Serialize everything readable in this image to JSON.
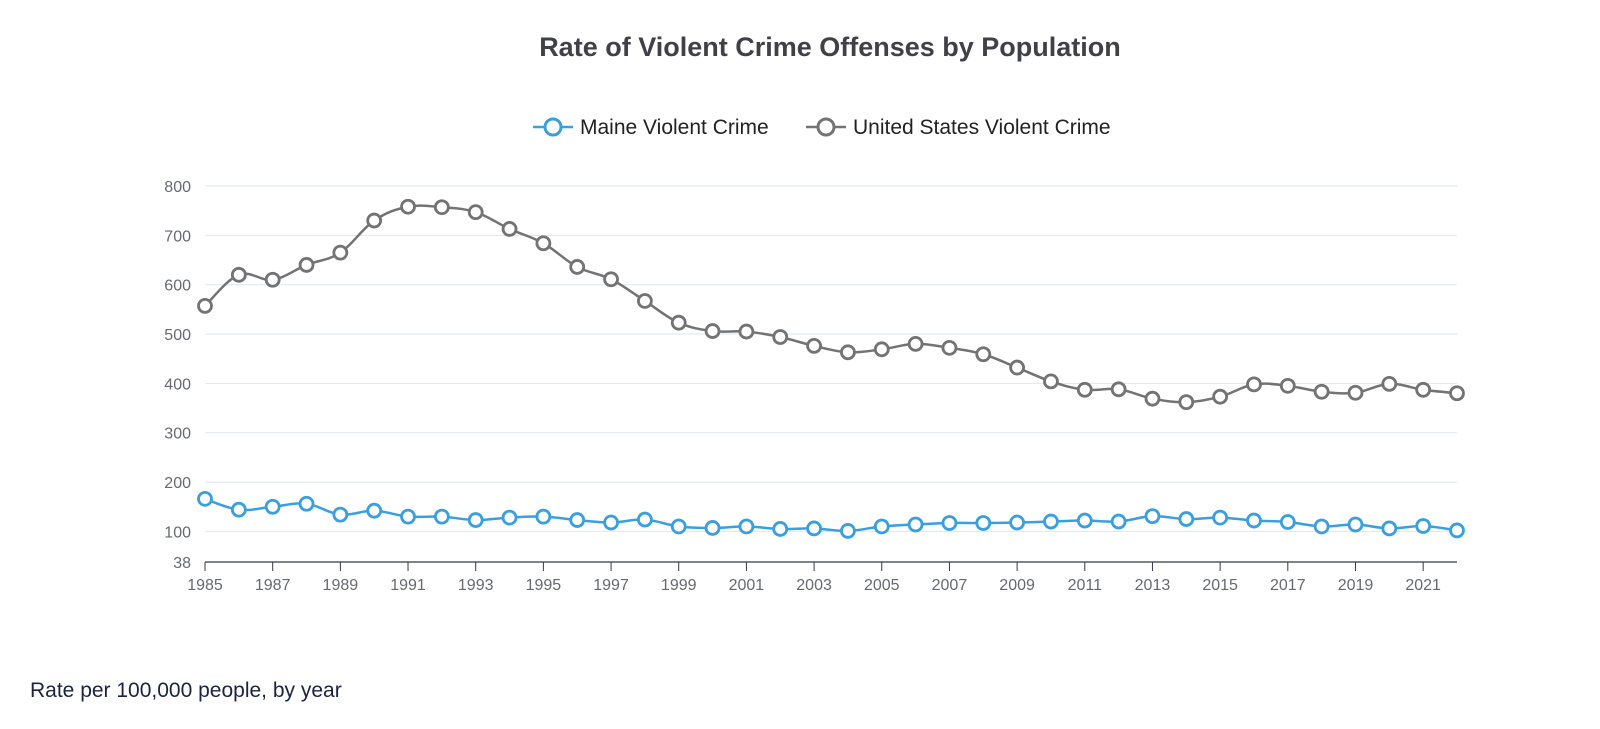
{
  "chart_data": {
    "type": "line",
    "title": "Rate of Violent Crime Offenses by Population",
    "xlabel": "",
    "ylabel": "",
    "x": [
      1985,
      1986,
      1987,
      1988,
      1989,
      1990,
      1991,
      1992,
      1993,
      1994,
      1995,
      1996,
      1997,
      1998,
      1999,
      2000,
      2001,
      2002,
      2003,
      2004,
      2005,
      2006,
      2007,
      2008,
      2009,
      2010,
      2011,
      2012,
      2013,
      2014,
      2015,
      2016,
      2017,
      2018,
      2019,
      2020,
      2021,
      2022
    ],
    "x_tick_labels": [
      "1985",
      "1987",
      "1989",
      "1991",
      "1993",
      "1995",
      "1997",
      "1999",
      "2001",
      "2003",
      "2005",
      "2007",
      "2009",
      "2011",
      "2013",
      "2015",
      "2017",
      "2019",
      "2021"
    ],
    "xlim": [
      1985,
      2022
    ],
    "ylim": [
      38,
      800
    ],
    "y_ticks": [
      38,
      100,
      200,
      300,
      400,
      500,
      600,
      700,
      800
    ],
    "grid": true,
    "legend_position": "top-center",
    "series": [
      {
        "name": "Maine Violent Crime",
        "color": "#3a9fe0",
        "values": [
          166,
          144,
          150,
          156,
          134,
          142,
          130,
          130,
          123,
          128,
          130,
          123,
          118,
          124,
          110,
          107,
          110,
          105,
          106,
          101,
          110,
          114,
          117,
          117,
          118,
          120,
          122,
          120,
          131,
          125,
          128,
          122,
          119,
          110,
          114,
          106,
          111,
          102
        ]
      },
      {
        "name": "United States Violent Crime",
        "color": "#737373",
        "values": [
          557,
          620,
          610,
          640,
          665,
          730,
          758,
          757,
          747,
          713,
          684,
          636,
          611,
          567,
          523,
          506,
          505,
          494,
          476,
          463,
          469,
          480,
          472,
          459,
          432,
          404,
          387,
          388,
          369,
          362,
          373,
          398,
          395,
          383,
          381,
          399,
          387,
          380
        ]
      }
    ]
  },
  "caption": "Rate per 100,000 people, by year"
}
